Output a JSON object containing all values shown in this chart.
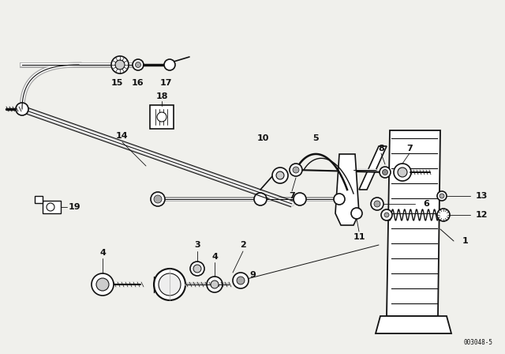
{
  "bg_color": "#f0f0ec",
  "line_color": "#111111",
  "diagram_code": "003048-5",
  "fig_width": 6.4,
  "fig_height": 4.48,
  "dpi": 100
}
